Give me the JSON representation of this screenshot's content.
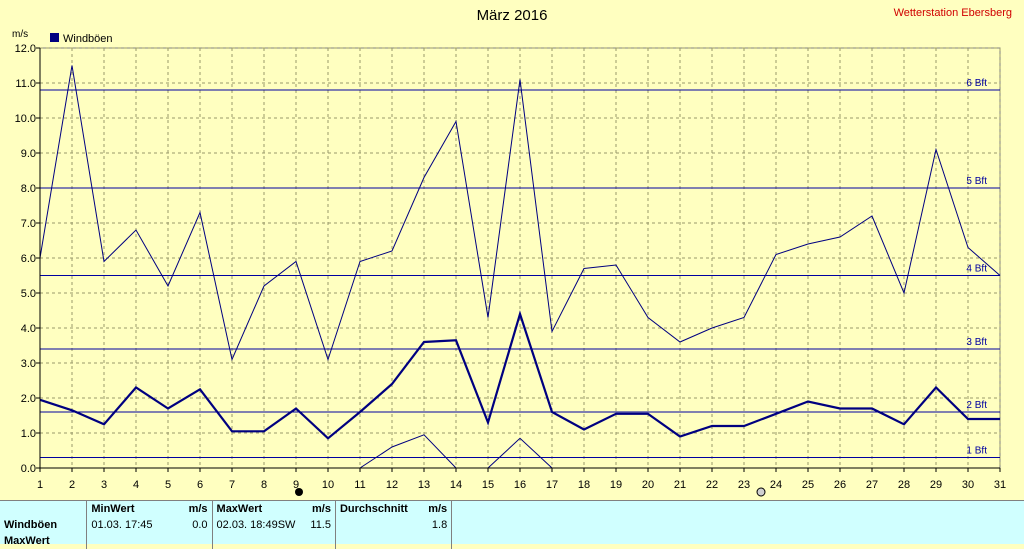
{
  "chart_data": {
    "type": "line",
    "title": "März 2016",
    "station": "Wetterstation Ebersberg",
    "ylabel": "m/s",
    "legend": "Windböen",
    "legend_color": "#000080",
    "ylim": [
      0,
      12
    ],
    "yticks": [
      "0.0",
      "1.0",
      "2.0",
      "3.0",
      "4.0",
      "5.0",
      "6.0",
      "7.0",
      "8.0",
      "9.0",
      "10.0",
      "11.0",
      "12.0"
    ],
    "x": [
      1,
      2,
      3,
      4,
      5,
      6,
      7,
      8,
      9,
      10,
      11,
      12,
      13,
      14,
      15,
      16,
      17,
      18,
      19,
      20,
      21,
      22,
      23,
      24,
      25,
      26,
      27,
      28,
      29,
      30,
      31
    ],
    "grid": true,
    "beaufort": [
      {
        "label": "1 Bft",
        "value": 0.3
      },
      {
        "label": "2 Bft",
        "value": 1.6
      },
      {
        "label": "3 Bft",
        "value": 3.4
      },
      {
        "label": "4 Bft",
        "value": 5.5
      },
      {
        "label": "5 Bft",
        "value": 8.0
      },
      {
        "label": "6 Bft",
        "value": 10.8
      }
    ],
    "series": [
      {
        "name": "Windböen",
        "style": "bold",
        "color": "#000080",
        "values": [
          1.95,
          1.65,
          1.25,
          2.3,
          1.7,
          2.25,
          1.05,
          1.05,
          1.7,
          0.85,
          1.6,
          2.4,
          3.6,
          3.65,
          1.3,
          4.4,
          1.6,
          1.1,
          1.55,
          1.55,
          0.9,
          1.2,
          1.2,
          1.55,
          1.9,
          1.7,
          1.7,
          1.25,
          2.3,
          1.4,
          1.4
        ]
      },
      {
        "style": "thin",
        "color": "#000080",
        "values": [
          6.0,
          11.5,
          5.9,
          6.8,
          5.2,
          7.3,
          3.1,
          5.2,
          5.9,
          3.1,
          5.9,
          6.2,
          8.3,
          9.9,
          4.3,
          11.1,
          3.9,
          5.7,
          5.8,
          4.3,
          3.6,
          4.0,
          4.3,
          6.1,
          6.4,
          6.6,
          7.2,
          5.0,
          9.1,
          6.3,
          5.5
        ]
      },
      {
        "style": "thin",
        "color": "#000080",
        "x": [
          11,
          12,
          13,
          14,
          15,
          16,
          17
        ],
        "values": [
          0.0,
          0.6,
          0.95,
          0.0,
          0.0,
          0.85,
          0.0
        ]
      }
    ]
  },
  "stats": {
    "row_label": "Windböen",
    "row2_label": "MaxWert",
    "min_header": "MinWert",
    "min_unit": "m/s",
    "max_header": "MaxWert",
    "max_unit": "m/s",
    "avg_header": "Durchschnitt",
    "avg_unit": "m/s",
    "min_time": "01.03.  17:45",
    "min_value": "0.0",
    "max_time": "02.03.  18:49",
    "max_dir": "SW",
    "max_value": "11.5",
    "avg_value": "1.8"
  }
}
